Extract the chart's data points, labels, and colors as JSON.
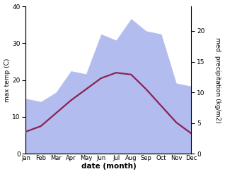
{
  "months": [
    "Jan",
    "Feb",
    "Mar",
    "Apr",
    "May",
    "Jun",
    "Jul",
    "Aug",
    "Sep",
    "Oct",
    "Nov",
    "Dec"
  ],
  "temp": [
    6.0,
    7.5,
    11.0,
    14.5,
    17.5,
    20.5,
    22.0,
    21.5,
    17.5,
    13.0,
    8.5,
    5.5
  ],
  "precip": [
    9.0,
    8.5,
    10.0,
    13.5,
    13.0,
    19.5,
    18.5,
    22.0,
    20.0,
    19.5,
    11.5,
    11.0
  ],
  "temp_color": "#8B2252",
  "precip_fill_color": "#b3bcee",
  "xlabel": "date (month)",
  "ylabel_left": "max temp (C)",
  "ylabel_right": "med. precipitation (kg/m2)",
  "ylim_left": [
    0,
    40
  ],
  "ylim_right": [
    0,
    24
  ],
  "yticks_left": [
    0,
    10,
    20,
    30,
    40
  ],
  "yticks_right": [
    0,
    5,
    10,
    15,
    20
  ],
  "bg_color": "#ffffff",
  "line_width": 1.6
}
